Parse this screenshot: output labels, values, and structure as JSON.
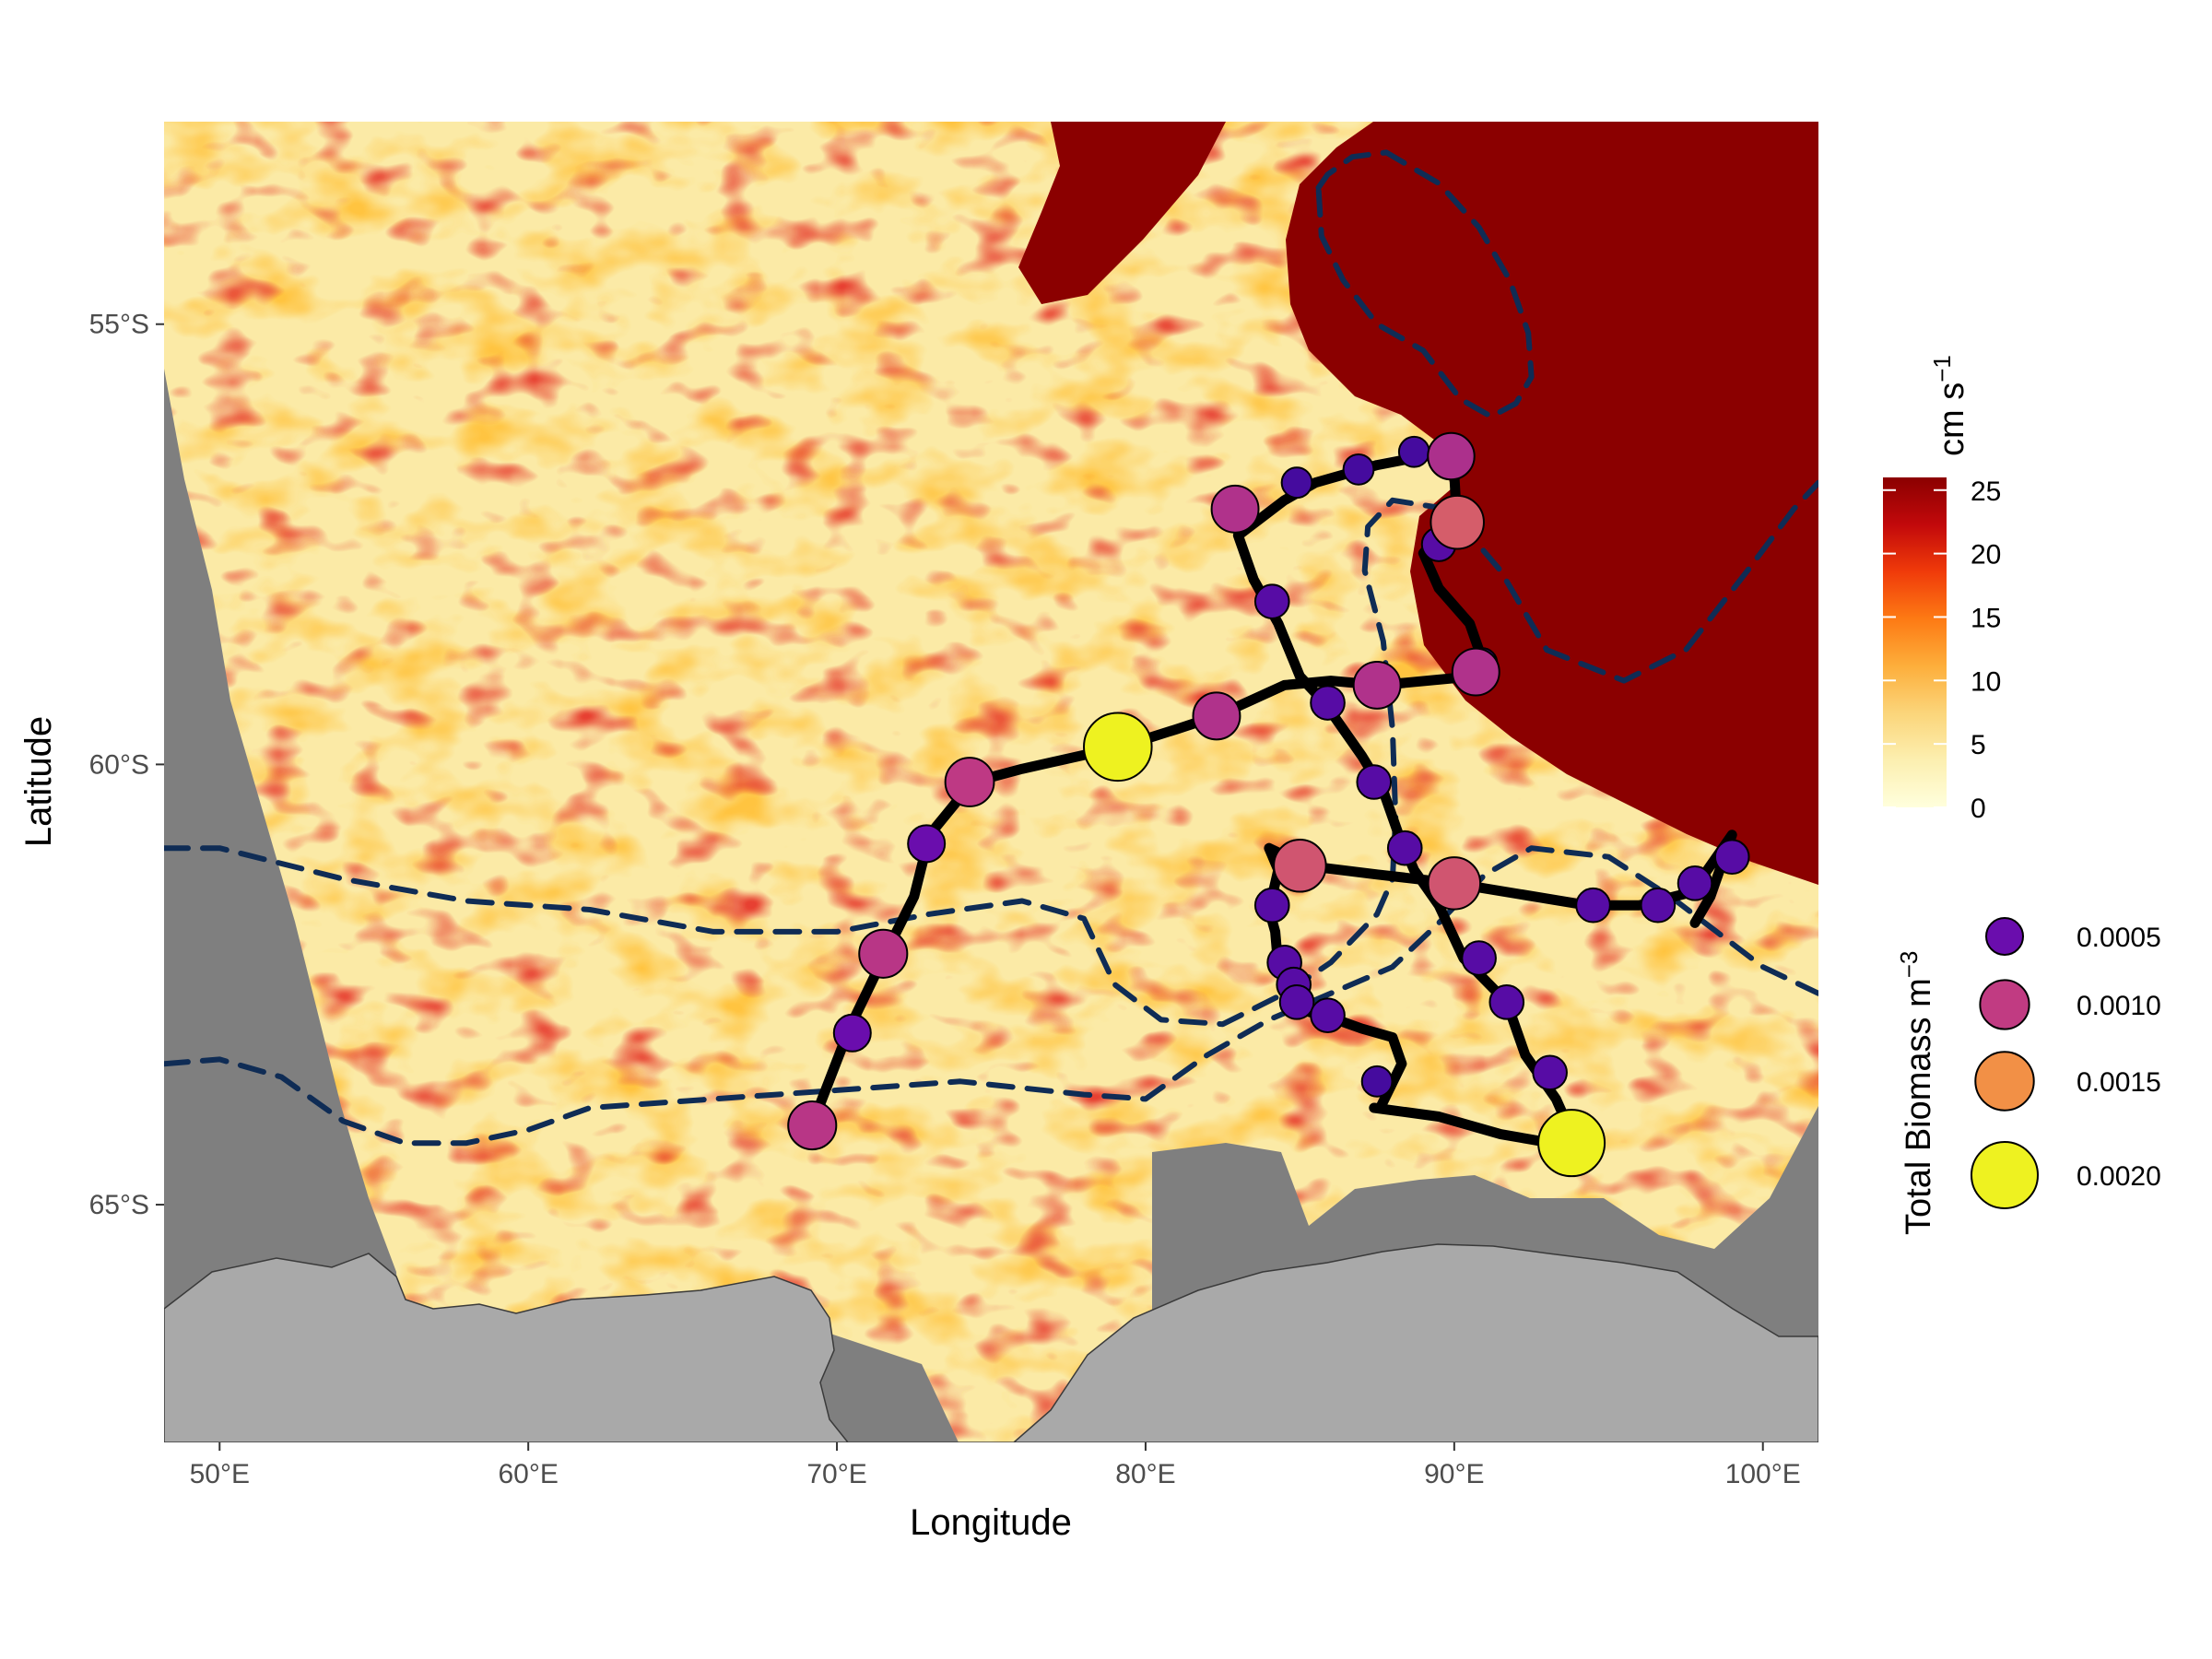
{
  "axes": {
    "x_title": "Longitude",
    "y_title": "Latitude",
    "x_ticks": [
      {
        "value": 50,
        "label": "50°E"
      },
      {
        "value": 60,
        "label": "60°E"
      },
      {
        "value": 70,
        "label": "70°E"
      },
      {
        "value": 80,
        "label": "80°E"
      },
      {
        "value": 90,
        "label": "90°E"
      },
      {
        "value": 100,
        "label": "100°E"
      }
    ],
    "y_ticks": [
      {
        "value": -55,
        "label": "55°S"
      },
      {
        "value": -60,
        "label": "60°S"
      },
      {
        "value": -65,
        "label": "65°S"
      }
    ],
    "xlim": [
      48.2,
      101.8
    ],
    "ylim": [
      -67.7,
      -52.7
    ]
  },
  "colorbar": {
    "title_main": "cm s",
    "title_exp": "−1",
    "min": 0,
    "max": 26,
    "ticks": [
      {
        "value": 0,
        "label": "0"
      },
      {
        "value": 5,
        "label": "5"
      },
      {
        "value": 10,
        "label": "10"
      },
      {
        "value": 15,
        "label": "15"
      },
      {
        "value": 20,
        "label": "20"
      },
      {
        "value": 25,
        "label": "25"
      }
    ],
    "stops": [
      "#ffffdd",
      "#fcefb0",
      "#fbd57a",
      "#fdae3b",
      "#fd7a14",
      "#f03b0a",
      "#c2090b",
      "#8b0000"
    ]
  },
  "size_legend": {
    "title_main": "Total Biomass m",
    "title_exp": "−3",
    "entries": [
      {
        "value": 0.0005,
        "label": "0.0005",
        "color": "#6a0dad"
      },
      {
        "value": 0.001,
        "label": "0.0010",
        "color": "#c13b82"
      },
      {
        "value": 0.0015,
        "label": "0.0015",
        "color": "#f29046"
      },
      {
        "value": 0.002,
        "label": "0.0020",
        "color": "#eef220"
      }
    ]
  },
  "colors": {
    "ocean_mask": "#7f7f7f",
    "land": "#a9a9a9",
    "front_line": "#0f2c55",
    "track": "#000000"
  },
  "chart_data": {
    "type": "map",
    "xlabel": "Longitude",
    "ylabel": "Latitude",
    "xlim": [
      48.2,
      101.8
    ],
    "ylim": [
      -67.7,
      -52.7
    ],
    "fronts": [
      [
        [
          48.2,
          -60.95
        ],
        [
          50,
          -60.95
        ],
        [
          54,
          -61.3
        ],
        [
          58,
          -61.55
        ],
        [
          62,
          -61.65
        ],
        [
          66,
          -61.9
        ],
        [
          70,
          -61.9
        ],
        [
          73,
          -61.7
        ],
        [
          76,
          -61.55
        ],
        [
          78,
          -61.75
        ],
        [
          79,
          -62.5
        ],
        [
          80.5,
          -62.9
        ],
        [
          82.5,
          -62.95
        ],
        [
          84.5,
          -62.6
        ],
        [
          86,
          -62.25
        ],
        [
          87.5,
          -61.7
        ],
        [
          88,
          -61.3
        ],
        [
          88.1,
          -60.6
        ],
        [
          88,
          -59.6
        ],
        [
          87.7,
          -58.6
        ],
        [
          87.1,
          -57.8
        ],
        [
          87.2,
          -57.3
        ],
        [
          88,
          -57
        ],
        [
          89.8,
          -57.1
        ],
        [
          91.5,
          -57.8
        ],
        [
          93,
          -58.7
        ],
        [
          95.5,
          -59.05
        ],
        [
          97.5,
          -58.7
        ],
        [
          99.5,
          -57.8
        ],
        [
          101,
          -57.1
        ],
        [
          101.8,
          -56.8
        ]
      ],
      [
        [
          48.2,
          -63.4
        ],
        [
          50,
          -63.35
        ],
        [
          52,
          -63.55
        ],
        [
          54,
          -64.05
        ],
        [
          56,
          -64.3
        ],
        [
          58,
          -64.3
        ],
        [
          60,
          -64.15
        ],
        [
          62,
          -63.9
        ],
        [
          66,
          -63.8
        ],
        [
          70,
          -63.7
        ],
        [
          74,
          -63.6
        ],
        [
          78,
          -63.75
        ],
        [
          80,
          -63.8
        ],
        [
          82,
          -63.3
        ],
        [
          84,
          -62.9
        ],
        [
          86,
          -62.6
        ],
        [
          88,
          -62.3
        ],
        [
          89.5,
          -61.8
        ],
        [
          91,
          -61.25
        ],
        [
          92.5,
          -60.95
        ],
        [
          95,
          -61.05
        ],
        [
          97,
          -61.5
        ],
        [
          98.5,
          -61.9
        ],
        [
          100,
          -62.3
        ],
        [
          101.8,
          -62.6
        ]
      ],
      [
        [
          85.6,
          -53.45
        ],
        [
          85.9,
          -53.3
        ],
        [
          86.7,
          -53.1
        ],
        [
          87.8,
          -53.05
        ],
        [
          89.5,
          -53.4
        ],
        [
          90.8,
          -53.9
        ],
        [
          91.8,
          -54.5
        ],
        [
          92.4,
          -55.1
        ],
        [
          92.5,
          -55.6
        ],
        [
          92,
          -55.9
        ],
        [
          91.2,
          -56.05
        ],
        [
          90.2,
          -55.85
        ],
        [
          89,
          -55.3
        ],
        [
          87.5,
          -55
        ],
        [
          86.4,
          -54.5
        ],
        [
          85.7,
          -54
        ],
        [
          85.6,
          -53.45
        ]
      ]
    ],
    "track": [
      [
        [
          69.3,
          -64
        ],
        [
          70.4,
          -63
        ],
        [
          71.5,
          -62.2
        ],
        [
          72.5,
          -61.5
        ],
        [
          73,
          -60.8
        ],
        [
          74.4,
          -60.2
        ],
        [
          76,
          -60.05
        ],
        [
          79.2,
          -59.8
        ],
        [
          81,
          -59.6
        ],
        [
          82.3,
          -59.45
        ],
        [
          84.5,
          -59.1
        ],
        [
          86,
          -59.05
        ],
        [
          87.6,
          -59.1
        ],
        [
          90.6,
          -59
        ],
        [
          91,
          -58.9
        ],
        [
          90.5,
          -58.4
        ],
        [
          89.5,
          -58
        ],
        [
          89,
          -57.6
        ],
        [
          89.5,
          -57.4
        ],
        [
          90.1,
          -57.3
        ],
        [
          90,
          -56.7
        ],
        [
          89.9,
          -56.5
        ],
        [
          89,
          -56.5
        ],
        [
          87.5,
          -56.6
        ],
        [
          85.5,
          -56.8
        ],
        [
          84.5,
          -57
        ],
        [
          83,
          -57.4
        ],
        [
          83.5,
          -57.9
        ],
        [
          84.3,
          -58.4
        ],
        [
          85,
          -59
        ],
        [
          85.8,
          -59.3
        ],
        [
          87,
          -59.9
        ],
        [
          87.7,
          -60.3
        ],
        [
          88.2,
          -60.8
        ],
        [
          88.7,
          -61.2
        ],
        [
          89.5,
          -61.6
        ],
        [
          90.3,
          -62.2
        ],
        [
          91.7,
          -62.7
        ],
        [
          92.3,
          -63.3
        ],
        [
          93.3,
          -63.8
        ],
        [
          94,
          -64.35
        ],
        [
          91.5,
          -64.2
        ],
        [
          89.5,
          -64
        ],
        [
          87.4,
          -63.9
        ]
      ],
      [
        [
          87.6,
          -63.9
        ],
        [
          88.3,
          -63.4
        ],
        [
          88,
          -63.1
        ],
        [
          87,
          -63
        ],
        [
          86.2,
          -62.9
        ],
        [
          85.2,
          -62.8
        ],
        [
          84.8,
          -62.6
        ],
        [
          84.3,
          -62.3
        ],
        [
          84.2,
          -61.9
        ],
        [
          84,
          -61.65
        ],
        [
          84.3,
          -61.2
        ],
        [
          84,
          -60.95
        ],
        [
          85.2,
          -61.15
        ],
        [
          87.5,
          -61.25
        ],
        [
          90,
          -61.35
        ],
        [
          94.3,
          -61.6
        ],
        [
          96,
          -61.6
        ],
        [
          97.7,
          -61.45
        ],
        [
          98.4,
          -61.1
        ],
        [
          99,
          -60.8
        ],
        [
          98.3,
          -61.5
        ],
        [
          97.8,
          -61.8
        ]
      ]
    ],
    "stations": [
      {
        "lon": 69.2,
        "lat": -64.1,
        "biomass": 0.00095
      },
      {
        "lon": 70.5,
        "lat": -63.05,
        "biomass": 0.0005
      },
      {
        "lon": 71.5,
        "lat": -62.15,
        "biomass": 0.00095
      },
      {
        "lon": 72.9,
        "lat": -60.9,
        "biomass": 0.0005
      },
      {
        "lon": 74.3,
        "lat": -60.2,
        "biomass": 0.00098
      },
      {
        "lon": 79.1,
        "lat": -59.8,
        "biomass": 0.0021
      },
      {
        "lon": 82.3,
        "lat": -59.45,
        "biomass": 0.0009
      },
      {
        "lon": 85.9,
        "lat": -59.3,
        "biomass": 0.0004
      },
      {
        "lon": 87.5,
        "lat": -59.1,
        "biomass": 0.0009
      },
      {
        "lon": 90.7,
        "lat": -58.95,
        "biomass": 0.0009
      },
      {
        "lon": 89.5,
        "lat": -57.5,
        "biomass": 0.0004
      },
      {
        "lon": 90.1,
        "lat": -57.25,
        "biomass": 0.0012
      },
      {
        "lon": 89.9,
        "lat": -56.5,
        "biomass": 0.00088
      },
      {
        "lon": 88.7,
        "lat": -56.45,
        "biomass": 0.0003
      },
      {
        "lon": 86.9,
        "lat": -56.65,
        "biomass": 0.0003
      },
      {
        "lon": 84.9,
        "lat": -56.8,
        "biomass": 0.0003
      },
      {
        "lon": 82.9,
        "lat": -57.1,
        "biomass": 0.0009
      },
      {
        "lon": 84.1,
        "lat": -58.15,
        "biomass": 0.0004
      },
      {
        "lon": 87.4,
        "lat": -60.2,
        "biomass": 0.0004
      },
      {
        "lon": 88.4,
        "lat": -60.95,
        "biomass": 0.0004
      },
      {
        "lon": 85,
        "lat": -61.15,
        "biomass": 0.00115
      },
      {
        "lon": 90,
        "lat": -61.35,
        "biomass": 0.00115
      },
      {
        "lon": 84.1,
        "lat": -61.6,
        "biomass": 0.0004
      },
      {
        "lon": 90.8,
        "lat": -62.2,
        "biomass": 0.0004
      },
      {
        "lon": 91.7,
        "lat": -62.7,
        "biomass": 0.0004
      },
      {
        "lon": 84.5,
        "lat": -62.25,
        "biomass": 0.0004
      },
      {
        "lon": 84.8,
        "lat": -62.5,
        "biomass": 0.0004
      },
      {
        "lon": 84.9,
        "lat": -62.7,
        "biomass": 0.0004
      },
      {
        "lon": 85.9,
        "lat": -62.85,
        "biomass": 0.0004
      },
      {
        "lon": 87.5,
        "lat": -63.6,
        "biomass": 0.0003
      },
      {
        "lon": 93.1,
        "lat": -63.5,
        "biomass": 0.0004
      },
      {
        "lon": 93.8,
        "lat": -64.3,
        "biomass": 0.002
      },
      {
        "lon": 94.5,
        "lat": -61.6,
        "biomass": 0.0004
      },
      {
        "lon": 96.6,
        "lat": -61.6,
        "biomass": 0.0004
      },
      {
        "lon": 97.8,
        "lat": -61.35,
        "biomass": 0.0004
      },
      {
        "lon": 99,
        "lat": -61.05,
        "biomass": 0.0004
      },
      {
        "lon": 90.9,
        "lat": -58.85,
        "biomass": 0.0003
      }
    ]
  }
}
